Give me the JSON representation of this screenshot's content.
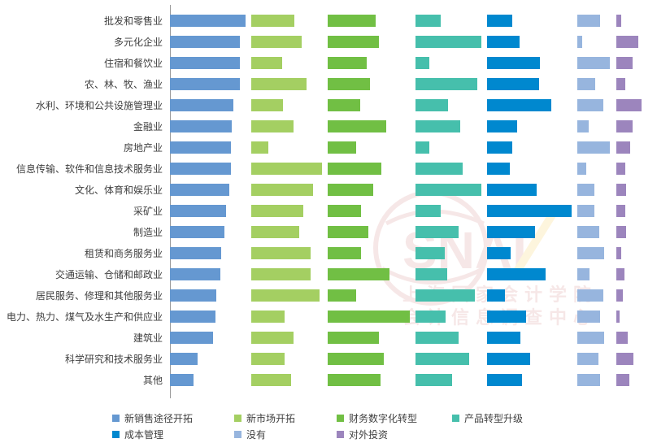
{
  "chart_data": {
    "type": "bar",
    "orientation": "horizontal",
    "layout": "small-multiples-by-series",
    "title": "",
    "xlabel": "",
    "ylabel": "",
    "grid": false,
    "legend_position": "bottom",
    "categories": [
      "批发和零售业",
      "多元化企业",
      "住宿和餐饮业",
      "农、林、牧、渔业",
      "水利、环境和公共设施管理业",
      "金融业",
      "房地产业",
      "信息传输、软件和信息技术服务业",
      "文化、体育和娱乐业",
      "采矿业",
      "制造业",
      "租赁和商务服务业",
      "交通运输、仓储和邮政业",
      "居民服务、修理和其他服务业",
      "电力、热力、煤气及水生产和供应业",
      "建筑业",
      "科学研究和技术服务业",
      "其他"
    ],
    "series": [
      {
        "name": "新销售途径开拓",
        "color": "#6598d1",
        "start": 209,
        "values": [
          93,
          86,
          86,
          86,
          78,
          76,
          75,
          75,
          73,
          69,
          67,
          63,
          62,
          57,
          56,
          53,
          34,
          29
        ]
      },
      {
        "name": "新市场开拓",
        "color": "#a4cf62",
        "start": 309,
        "values": [
          53,
          62,
          38,
          68,
          39,
          52,
          21,
          87,
          76,
          64,
          59,
          73,
          73,
          84,
          41,
          52,
          41,
          49
        ]
      },
      {
        "name": "财务数字化转型",
        "color": "#71bf44",
        "start": 403,
        "values": [
          59,
          63,
          48,
          52,
          40,
          72,
          35,
          66,
          56,
          41,
          50,
          41,
          76,
          35,
          101,
          63,
          69,
          65
        ]
      },
      {
        "name": "产品转型升级",
        "color": "#46bfac",
        "start": 511,
        "values": [
          31,
          81,
          17,
          76,
          40,
          55,
          17,
          58,
          81,
          31,
          53,
          36,
          39,
          73,
          37,
          53,
          66,
          45
        ]
      },
      {
        "name": "成本管理",
        "color": "#0088cf",
        "start": 599,
        "values": [
          31,
          40,
          65,
          64,
          79,
          37,
          31,
          28,
          61,
          104,
          59,
          29,
          72,
          22,
          48,
          41,
          53,
          43
        ]
      },
      {
        "name": "没有",
        "color": "#97b5de",
        "start": 710,
        "values": [
          28,
          6,
          40,
          22,
          32,
          14,
          40,
          11,
          21,
          21,
          27,
          33,
          15,
          32,
          28,
          33,
          26,
          28
        ]
      },
      {
        "name": "对外投资",
        "color": "#9c85bd",
        "start": 758,
        "values": [
          6,
          27,
          20,
          11,
          31,
          20,
          17,
          11,
          12,
          11,
          12,
          6,
          10,
          8,
          4,
          14,
          21,
          16
        ]
      }
    ],
    "value_units": "pixel bar lengths (no axis scale shown)"
  },
  "legend": {
    "items": [
      {
        "label": "新销售途径开拓",
        "color": "#6598d1"
      },
      {
        "label": "新市场开拓",
        "color": "#a4cf62"
      },
      {
        "label": "财务数字化转型",
        "color": "#71bf44"
      },
      {
        "label": "产品转型升级",
        "color": "#46bfac"
      },
      {
        "label": "成本管理",
        "color": "#0088cf"
      },
      {
        "label": "没有",
        "color": "#97b5de"
      },
      {
        "label": "对外投资",
        "color": "#9c85bd"
      }
    ]
  },
  "watermark": {
    "logo": "SNAI",
    "line1": "上海国家会计学院",
    "line2": "会计信息调查中心"
  }
}
